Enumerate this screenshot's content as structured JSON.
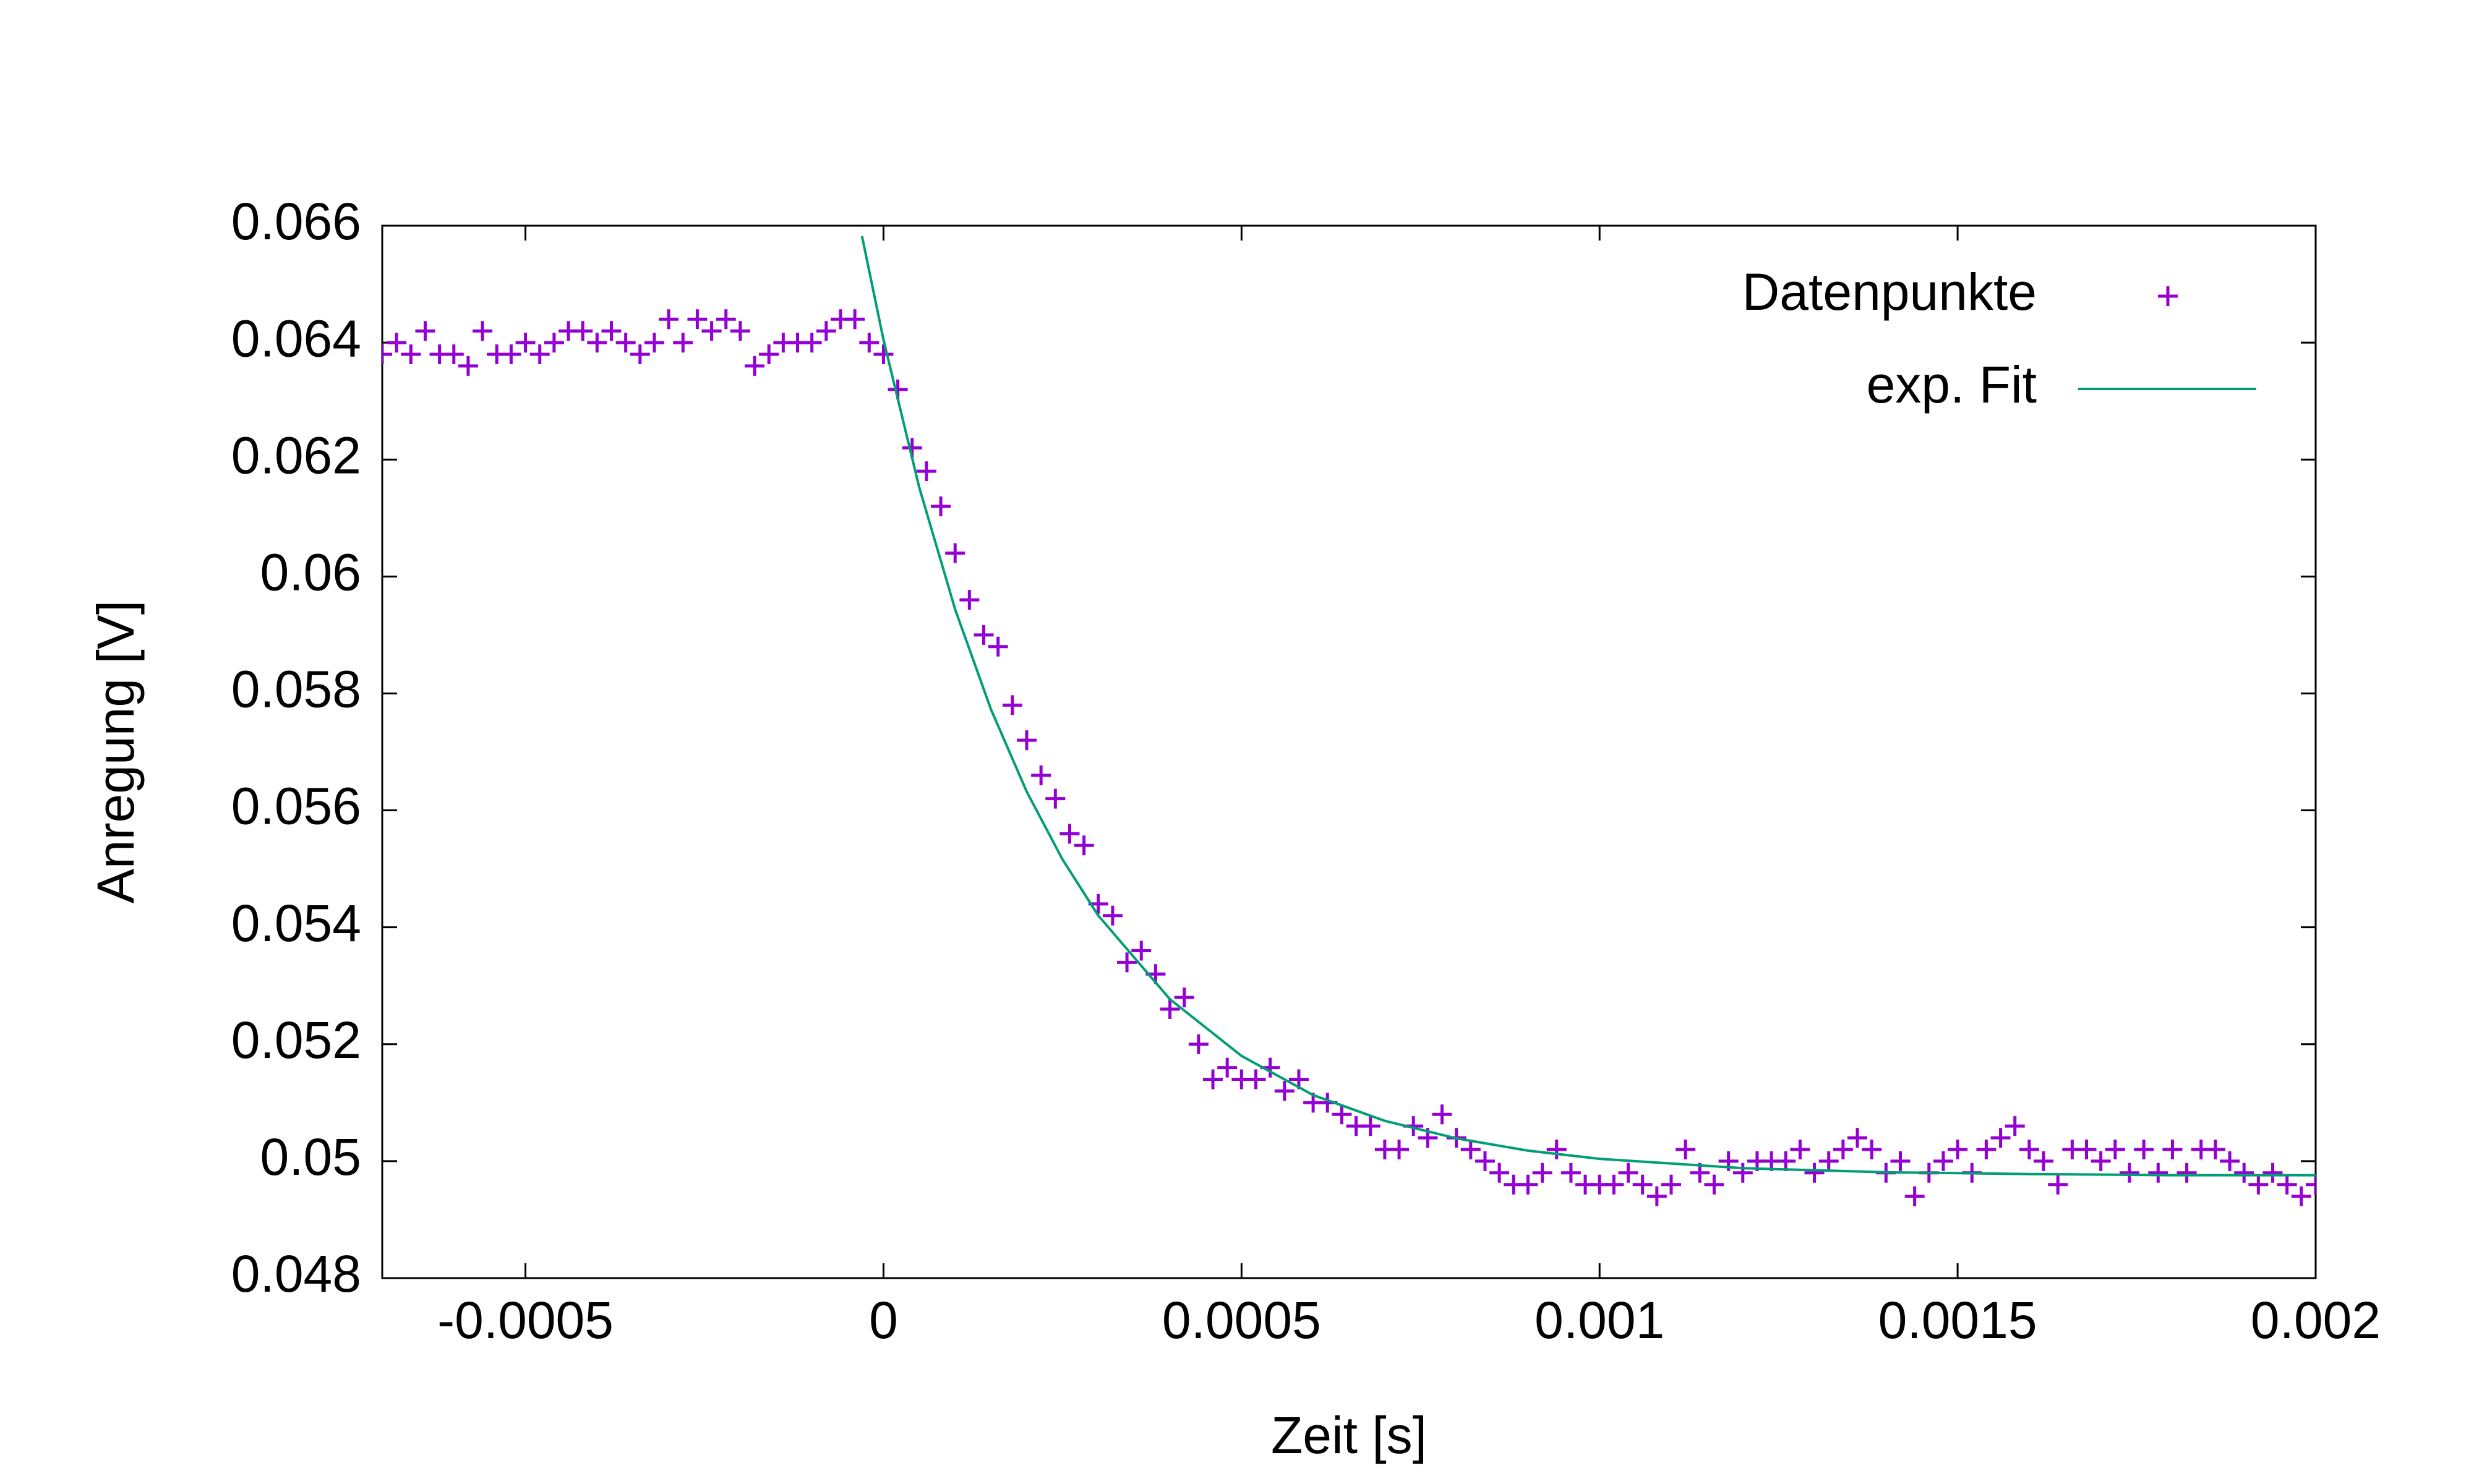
{
  "chart_data": {
    "type": "scatter",
    "xlabel": "Zeit [s]",
    "ylabel": "Anregung [V]",
    "xlim": [
      -0.0007,
      0.002
    ],
    "ylim": [
      0.048,
      0.066
    ],
    "xticks": [
      -0.0005,
      0,
      0.0005,
      0.001,
      0.0015,
      0.002
    ],
    "yticks": [
      0.048,
      0.05,
      0.052,
      0.054,
      0.056,
      0.058,
      0.06,
      0.062,
      0.064,
      0.066
    ],
    "legend": "top right",
    "series": [
      {
        "name": "Datenpunkte",
        "type": "scatter",
        "color": "#9400d3",
        "x": [
          -0.0007,
          -0.00068,
          -0.00066,
          -0.00064,
          -0.00062,
          -0.0006,
          -0.00058,
          -0.00056,
          -0.00054,
          -0.00052,
          -0.0005,
          -0.00048,
          -0.00046,
          -0.00044,
          -0.00042,
          -0.0004,
          -0.00038,
          -0.00036,
          -0.00034,
          -0.00032,
          -0.0003,
          -0.00028,
          -0.00026,
          -0.00024,
          -0.00022,
          -0.0002,
          -0.00018,
          -0.00016,
          -0.00014,
          -0.00012,
          -0.0001,
          -8e-05,
          -6e-05,
          -4e-05,
          -2e-05,
          0,
          2e-05,
          4e-05,
          6e-05,
          8e-05,
          0.0001,
          0.00012,
          0.00014,
          0.00016,
          0.00018,
          0.0002,
          0.00022,
          0.00024,
          0.00026,
          0.00028,
          0.0003,
          0.00032,
          0.00034,
          0.00036,
          0.00038,
          0.0004,
          0.00042,
          0.00044,
          0.00046,
          0.00048,
          0.0005,
          0.00052,
          0.00054,
          0.00056,
          0.00058,
          0.0006,
          0.00062,
          0.00064,
          0.00066,
          0.00068,
          0.0007,
          0.00072,
          0.00074,
          0.00076,
          0.00078,
          0.0008,
          0.00082,
          0.00084,
          0.00086,
          0.00088,
          0.0009,
          0.00092,
          0.00094,
          0.00096,
          0.00098,
          0.001,
          0.00102,
          0.00104,
          0.00106,
          0.00108,
          0.0011,
          0.00112,
          0.00114,
          0.00116,
          0.00118,
          0.0012,
          0.00122,
          0.00124,
          0.00126,
          0.00128,
          0.0013,
          0.00132,
          0.00134,
          0.00136,
          0.00138,
          0.0014,
          0.00142,
          0.00144,
          0.00146,
          0.00148,
          0.0015,
          0.00152,
          0.00154,
          0.00156,
          0.00158,
          0.0016,
          0.00162,
          0.00164,
          0.00166,
          0.00168,
          0.0017,
          0.00172,
          0.00174,
          0.00176,
          0.00178,
          0.0018,
          0.00182,
          0.00184,
          0.00186,
          0.00188,
          0.0019,
          0.00192,
          0.00194,
          0.00196,
          0.00198,
          0.002
        ],
        "values": [
          0.0638,
          0.064,
          0.0638,
          0.0642,
          0.0638,
          0.0638,
          0.0636,
          0.0642,
          0.0638,
          0.0638,
          0.064,
          0.0638,
          0.064,
          0.0642,
          0.0642,
          0.064,
          0.0642,
          0.064,
          0.0638,
          0.064,
          0.0644,
          0.064,
          0.0644,
          0.0642,
          0.0644,
          0.0642,
          0.0636,
          0.0638,
          0.064,
          0.064,
          0.064,
          0.0642,
          0.0644,
          0.0644,
          0.064,
          0.0638,
          0.0632,
          0.0622,
          0.0618,
          0.0612,
          0.0604,
          0.0596,
          0.059,
          0.0588,
          0.0578,
          0.0572,
          0.0566,
          0.0562,
          0.0556,
          0.0554,
          0.0544,
          0.0542,
          0.0534,
          0.0536,
          0.0532,
          0.0526,
          0.0528,
          0.052,
          0.0514,
          0.0516,
          0.0514,
          0.0514,
          0.0516,
          0.0512,
          0.0514,
          0.051,
          0.051,
          0.0508,
          0.0506,
          0.0506,
          0.0502,
          0.0502,
          0.0506,
          0.0504,
          0.0508,
          0.0504,
          0.0502,
          0.05,
          0.0498,
          0.0496,
          0.0496,
          0.0498,
          0.0502,
          0.0498,
          0.0496,
          0.0496,
          0.0496,
          0.0498,
          0.0496,
          0.0494,
          0.0496,
          0.0502,
          0.0498,
          0.0496,
          0.05,
          0.0498,
          0.05,
          0.05,
          0.05,
          0.0502,
          0.0498,
          0.05,
          0.0502,
          0.0504,
          0.0502,
          0.0498,
          0.05,
          0.0494,
          0.0498,
          0.05,
          0.0502,
          0.0498,
          0.0502,
          0.0504,
          0.0506,
          0.0502,
          0.05,
          0.0496,
          0.0502,
          0.0502,
          0.05,
          0.0502,
          0.0498,
          0.0502,
          0.0498,
          0.0502,
          0.0498,
          0.0502,
          0.0502,
          0.05,
          0.0498,
          0.0496,
          0.0498,
          0.0496,
          0.0494,
          0.0496
        ]
      },
      {
        "name": "exp. Fit",
        "type": "line",
        "color": "#009e73",
        "x": [
          -3e-05,
          0,
          5e-05,
          0.0001,
          0.00015,
          0.0002,
          0.00025,
          0.0003,
          0.0004,
          0.0005,
          0.0006,
          0.0007,
          0.0008,
          0.0009,
          0.001,
          0.0012,
          0.0014,
          0.0016,
          0.0018,
          0.002
        ],
        "values": [
          0.06582,
          0.06405,
          0.06152,
          0.05944,
          0.05773,
          0.05632,
          0.05516,
          0.0542,
          0.05277,
          0.0518,
          0.05113,
          0.05069,
          0.05039,
          0.05018,
          0.05004,
          0.04988,
          0.04981,
          0.04978,
          0.04976,
          0.04976
        ]
      }
    ]
  }
}
